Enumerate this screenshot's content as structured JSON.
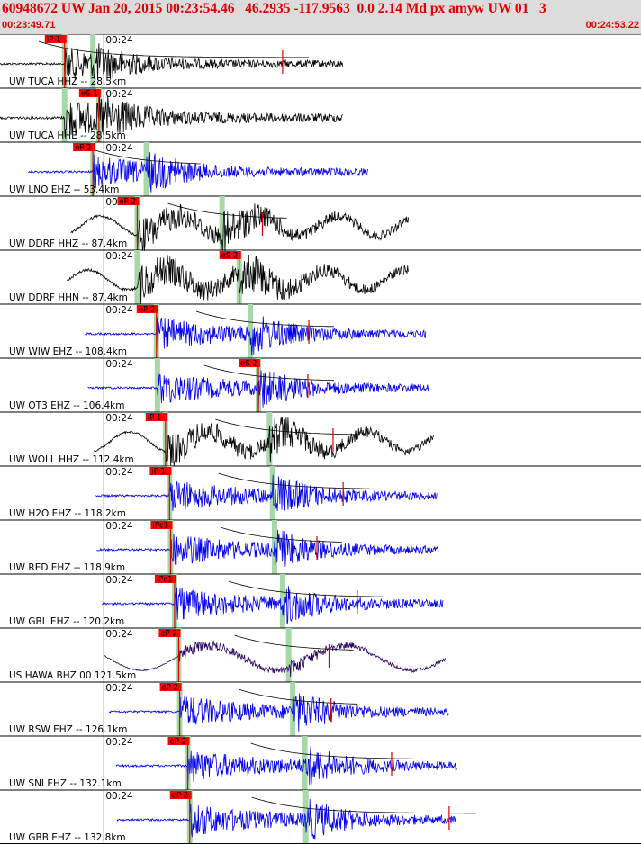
{
  "header": {
    "title": "60948672 UW Jan 20, 2015 00:23:54.46   46.2935 -117.9563  0.0 2.14 Md px amyw UW 01   3",
    "start_time": "00:23:49.71",
    "end_time": "00:24:53.22"
  },
  "colors": {
    "title": "#e00000",
    "header_bg": "#dcdcdc",
    "pick_box": "#ff0000",
    "pick_line": "#dd0000",
    "arrival_band": "#a8d8a8",
    "trace_black": "#000000",
    "trace_blue": "#0000ee",
    "coda_curve": "#000000"
  },
  "time_window": {
    "start_s": 0,
    "end_s": 63.51,
    "minute_mark_s": 10.29,
    "minute_label": "00:24"
  },
  "stations": [
    {
      "label": "UW TUCA HHZ -- 28.5km",
      "color": "black",
      "pick": "iP 1",
      "p_s": 6.4,
      "s_s": 9.2,
      "coda_end_s": 28.0,
      "trace_start_s": 0.0,
      "trace_end_s": 34.0,
      "amp": 1.0
    },
    {
      "label": "UW TUCA HHE -- 28.5km",
      "color": "black",
      "pick": "eS 1",
      "p_s": 6.4,
      "s_s": 9.8,
      "coda_end_s": 0,
      "trace_start_s": 0.0,
      "trace_end_s": 34.0,
      "amp": 1.2
    },
    {
      "label": "UW LNO EHZ -- 53.4km",
      "color": "blue",
      "pick": "eP 2",
      "p_s": 9.2,
      "s_s": 14.5,
      "coda_end_s": 17.4,
      "trace_start_s": 2.8,
      "trace_end_s": 36.5,
      "amp": 1.0
    },
    {
      "label": "UW DDRF HHZ -- 87.4km",
      "color": "black",
      "pick": "eP 2",
      "p_s": 13.6,
      "s_s": 22.0,
      "coda_end_s": 26.0,
      "trace_start_s": 7.0,
      "trace_end_s": 40.5,
      "amp": 1.1
    },
    {
      "label": "UW DDRF HHN -- 87.4km",
      "color": "black",
      "pick": "eS 2",
      "p_s": 13.6,
      "s_s": 23.7,
      "coda_end_s": 0,
      "trace_start_s": 6.6,
      "trace_end_s": 40.5,
      "amp": 1.2
    },
    {
      "label": "UW WIW EHZ -- 108.4km",
      "color": "blue",
      "pick": "eP 2",
      "p_s": 15.5,
      "s_s": 24.8,
      "coda_end_s": 30.6,
      "trace_start_s": 8.4,
      "trace_end_s": 42.2,
      "amp": 1.0
    },
    {
      "label": "UW OT3 EHZ -- 106.4km",
      "color": "blue",
      "pick": "eS 2",
      "p_s": 15.6,
      "s_s": 25.6,
      "coda_end_s": 30.5,
      "trace_start_s": 8.7,
      "trace_end_s": 42.5,
      "amp": 1.0
    },
    {
      "label": "UW WOLL HHZ -- 112.4km",
      "color": "black",
      "pick": "iP 1",
      "p_s": 16.4,
      "s_s": 26.7,
      "coda_end_s": 33.0,
      "trace_start_s": 9.3,
      "trace_end_s": 43.0,
      "amp": 1.0
    },
    {
      "label": "UW H2O EHZ -- 118.2km",
      "color": "blue",
      "pick": "iP 1",
      "p_s": 16.8,
      "s_s": 27.0,
      "coda_end_s": 34.0,
      "trace_start_s": 9.5,
      "trace_end_s": 43.3,
      "amp": 1.0
    },
    {
      "label": "UW RED EHZ -- 118.9km",
      "color": "blue",
      "pick": "iPc1",
      "p_s": 16.9,
      "s_s": 27.2,
      "coda_end_s": 31.4,
      "trace_start_s": 9.6,
      "trace_end_s": 43.5,
      "amp": 1.0
    },
    {
      "label": "UW GBL EHZ -- 120.2km",
      "color": "blue",
      "pick": "iPc1",
      "p_s": 17.3,
      "s_s": 28.0,
      "coda_end_s": 35.4,
      "trace_start_s": 10.1,
      "trace_end_s": 43.9,
      "amp": 1.0
    },
    {
      "label": "US HAWA BHZ 00 121.5km",
      "color": "purple",
      "pick": "eP 2",
      "p_s": 17.7,
      "s_s": 28.6,
      "coda_end_s": 32.6,
      "trace_start_s": 10.3,
      "trace_end_s": 44.2,
      "amp": 1.0
    },
    {
      "label": "UW RSW EHZ -- 126.1km",
      "color": "blue",
      "pick": "eP 2",
      "p_s": 17.8,
      "s_s": 29.0,
      "coda_end_s": 32.8,
      "trace_start_s": 10.8,
      "trace_end_s": 44.5,
      "amp": 1.0
    },
    {
      "label": "UW SNI EHZ -- 132.1km",
      "color": "blue",
      "pick": "eP 2",
      "p_s": 18.6,
      "s_s": 30.2,
      "coda_end_s": 38.8,
      "trace_start_s": 11.5,
      "trace_end_s": 45.3,
      "amp": 1.0
    },
    {
      "label": "UW GBB EHZ -- 132.8km",
      "color": "blue",
      "pick": "eP 2",
      "p_s": 18.8,
      "s_s": 30.3,
      "coda_end_s": 44.5,
      "trace_start_s": 11.6,
      "trace_end_s": 45.2,
      "amp": 1.0
    }
  ]
}
